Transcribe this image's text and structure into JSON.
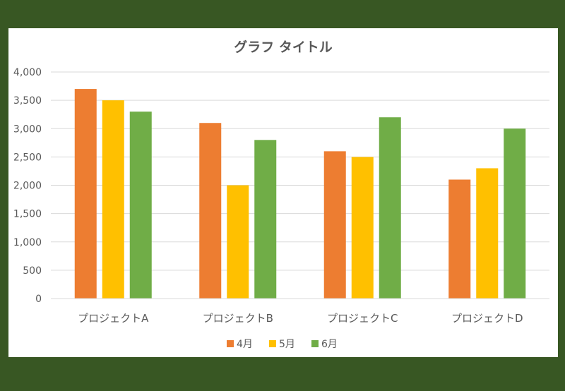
{
  "colors": {
    "background": "#385723",
    "panel": "#ffffff",
    "gridline": "#d9d9d9",
    "text": "#595959"
  },
  "chart_data": {
    "type": "bar",
    "title": "グラフ タイトル",
    "xlabel": "",
    "ylabel": "",
    "categories": [
      "プロジェクトA",
      "プロジェクトB",
      "プロジェクトC",
      "プロジェクトD"
    ],
    "series": [
      {
        "name": "4月",
        "color": "#ed7d31",
        "values": [
          3700,
          3100,
          2600,
          2100
        ]
      },
      {
        "name": "5月",
        "color": "#ffc000",
        "values": [
          3500,
          2000,
          2500,
          2300
        ]
      },
      {
        "name": "6月",
        "color": "#70ad47",
        "values": [
          3300,
          2800,
          3200,
          3000
        ]
      }
    ],
    "ylim": [
      0,
      4000
    ],
    "yticks": [
      "0",
      "500",
      "1,000",
      "1,500",
      "2,000",
      "2,500",
      "3,000",
      "3,500",
      "4,000"
    ],
    "grid": true,
    "legend_position": "bottom"
  }
}
